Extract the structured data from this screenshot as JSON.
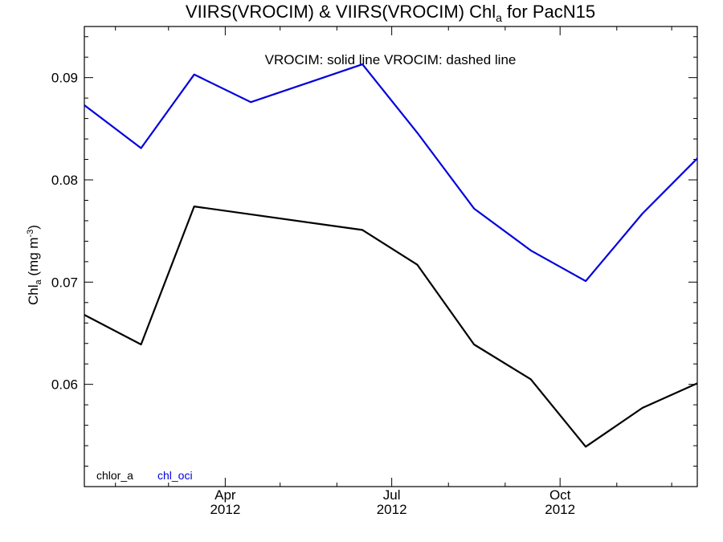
{
  "chart_data": {
    "type": "line",
    "title": {
      "main": "VIIRS(VROCIM) & VIIRS(VROCIM)  Chl",
      "sub": "a",
      "suffix": " for PacN15"
    },
    "ylabel": {
      "main": "Chl",
      "sub": "a",
      "mid": " (mg m",
      "sup": "-3",
      "end": ")"
    },
    "xlabel": "",
    "annotation": "VROCIM: solid line   VROCIM: dashed line",
    "x_range": [
      "2012-01-15",
      "2012-12-15"
    ],
    "ylim": [
      0.05,
      0.095
    ],
    "y_ticks": [
      {
        "value": 0.06,
        "label": "0.06"
      },
      {
        "value": 0.07,
        "label": "0.07"
      },
      {
        "value": 0.08,
        "label": "0.08"
      },
      {
        "value": 0.09,
        "label": "0.09"
      }
    ],
    "x_ticks": [
      {
        "date": "2012-04-01",
        "label": "Apr",
        "year": "2012"
      },
      {
        "date": "2012-07-01",
        "label": "Jul",
        "year": "2012"
      },
      {
        "date": "2012-10-01",
        "label": "Oct",
        "year": "2012"
      }
    ],
    "grid": false,
    "legend_position": "bottom-left",
    "series": [
      {
        "name": "chlor_a",
        "color": "#000000",
        "points": [
          {
            "x": "2012-01-15",
            "y": 0.0668
          },
          {
            "x": "2012-02-15",
            "y": 0.0639
          },
          {
            "x": "2012-03-15",
            "y": 0.0774
          },
          {
            "x": "2012-06-15",
            "y": 0.0751
          },
          {
            "x": "2012-07-15",
            "y": 0.0717
          },
          {
            "x": "2012-08-15",
            "y": 0.0639
          },
          {
            "x": "2012-09-15",
            "y": 0.0605
          },
          {
            "x": "2012-10-15",
            "y": 0.0539
          },
          {
            "x": "2012-11-15",
            "y": 0.0577
          },
          {
            "x": "2012-12-15",
            "y": 0.0601
          }
        ]
      },
      {
        "name": "chl_oci",
        "color": "#0000dd",
        "points": [
          {
            "x": "2012-01-15",
            "y": 0.0873
          },
          {
            "x": "2012-02-15",
            "y": 0.0831
          },
          {
            "x": "2012-03-15",
            "y": 0.0903
          },
          {
            "x": "2012-04-15",
            "y": 0.0876
          },
          {
            "x": "2012-06-15",
            "y": 0.0913
          },
          {
            "x": "2012-07-15",
            "y": 0.0846
          },
          {
            "x": "2012-08-15",
            "y": 0.0772
          },
          {
            "x": "2012-09-15",
            "y": 0.0731
          },
          {
            "x": "2012-10-15",
            "y": 0.0701
          },
          {
            "x": "2012-11-15",
            "y": 0.0767
          },
          {
            "x": "2012-12-15",
            "y": 0.0821
          }
        ]
      }
    ]
  }
}
